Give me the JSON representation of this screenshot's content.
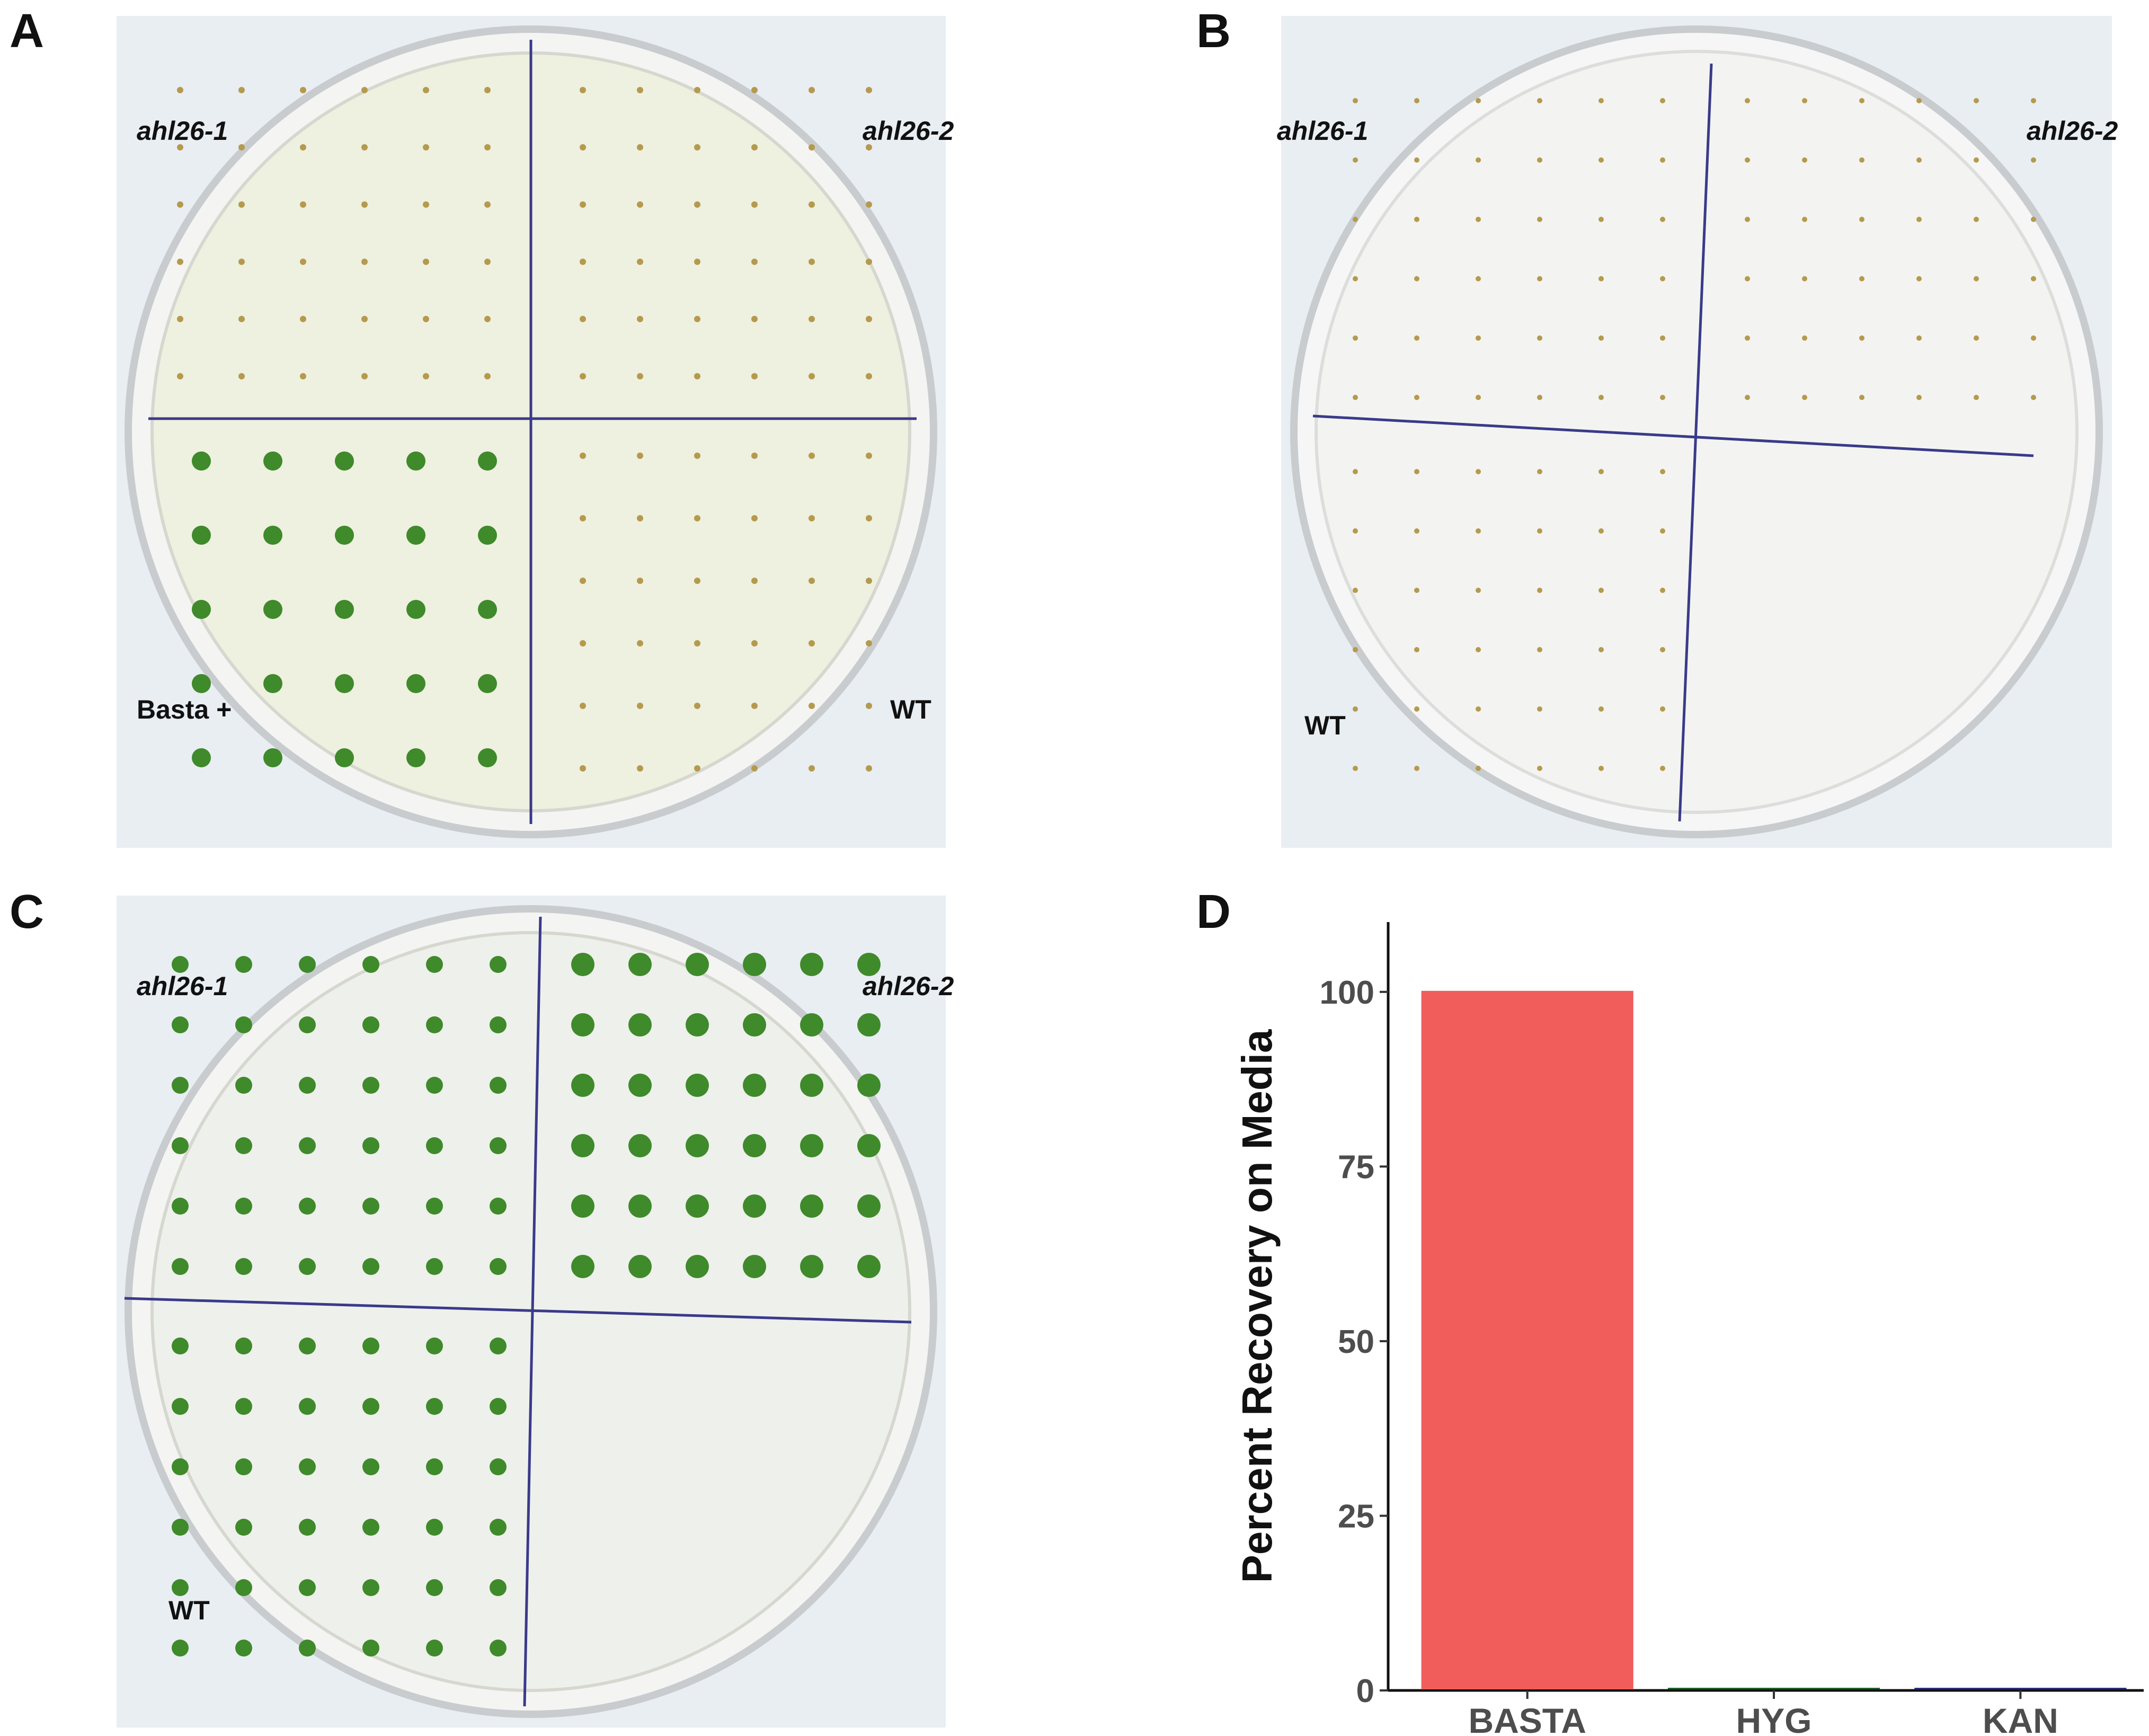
{
  "panels": {
    "A": {
      "letter": "A",
      "labels": {
        "top_left": "ahl26-1",
        "top_right": "ahl26-2",
        "bottom_left": "Basta +",
        "bottom_right": "WT"
      }
    },
    "B": {
      "letter": "B",
      "labels": {
        "top_left": "ahl26-1",
        "top_right": "ahl26-2",
        "bottom_left": "WT"
      }
    },
    "C": {
      "letter": "C",
      "labels": {
        "top_left": "ahl26-1",
        "top_right": "ahl26-2",
        "bottom_left": "WT"
      }
    },
    "D": {
      "letter": "D"
    }
  },
  "colors": {
    "basta": "#f05d5a",
    "hyg": "#1f5f2a",
    "kan": "#2b2f7a",
    "plate": "#eef0e6",
    "seedling_green": "#3f8a2a",
    "seedling_dead": "#b59a4e",
    "marker_line": "#3a3a8a"
  },
  "chart_data": {
    "type": "bar",
    "categories": [
      "BASTA",
      "HYG",
      "KAN"
    ],
    "values": [
      100,
      0,
      0
    ],
    "xlabel": "",
    "ylabel": "Percent Recovery on Media",
    "ylim": [
      0,
      110
    ],
    "yticks": [
      0,
      25,
      50,
      75,
      100
    ],
    "grid": false,
    "legend": "none"
  }
}
